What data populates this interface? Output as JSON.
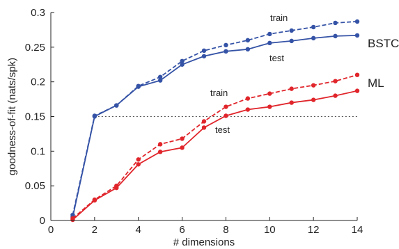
{
  "chart_data": {
    "type": "line",
    "xlabel": "# dimensions",
    "ylabel": "goodness-of-fit (nats/spk)",
    "xlim": [
      0,
      14
    ],
    "ylim": [
      0,
      0.3
    ],
    "xticks": [
      0,
      2,
      4,
      6,
      8,
      10,
      12,
      14
    ],
    "yticks": [
      0,
      0.05,
      0.1,
      0.15,
      0.2,
      0.25,
      0.3
    ],
    "x": [
      1,
      2,
      3,
      4,
      5,
      6,
      7,
      8,
      9,
      10,
      11,
      12,
      13,
      14
    ],
    "reference_line": {
      "y": 0.15,
      "style": "dotted",
      "color": "#555555"
    },
    "series": [
      {
        "group": "BSTC",
        "kind": "train",
        "color": "#3553a6",
        "dashed": true,
        "values": [
          0.008,
          0.151,
          0.166,
          0.194,
          0.207,
          0.23,
          0.245,
          0.253,
          0.26,
          0.269,
          0.274,
          0.279,
          0.285,
          0.287
        ]
      },
      {
        "group": "BSTC",
        "kind": "test",
        "color": "#3553a6",
        "dashed": false,
        "values": [
          0.005,
          0.15,
          0.166,
          0.193,
          0.202,
          0.225,
          0.237,
          0.244,
          0.247,
          0.256,
          0.259,
          0.263,
          0.266,
          0.267
        ]
      },
      {
        "group": "ML",
        "kind": "train",
        "color": "#e0252b",
        "dashed": true,
        "values": [
          0.003,
          0.03,
          0.05,
          0.088,
          0.11,
          0.118,
          0.143,
          0.164,
          0.176,
          0.183,
          0.19,
          0.195,
          0.201,
          0.21
        ]
      },
      {
        "group": "ML",
        "kind": "test",
        "color": "#e0252b",
        "dashed": false,
        "values": [
          0.001,
          0.029,
          0.047,
          0.081,
          0.099,
          0.105,
          0.134,
          0.151,
          0.16,
          0.164,
          0.17,
          0.174,
          0.18,
          0.187
        ]
      }
    ],
    "annotations": [
      {
        "text": "BSTC"
      },
      {
        "text": "ML"
      },
      {
        "text": "train"
      },
      {
        "text": "test"
      },
      {
        "text": "train"
      },
      {
        "text": "test"
      }
    ]
  }
}
